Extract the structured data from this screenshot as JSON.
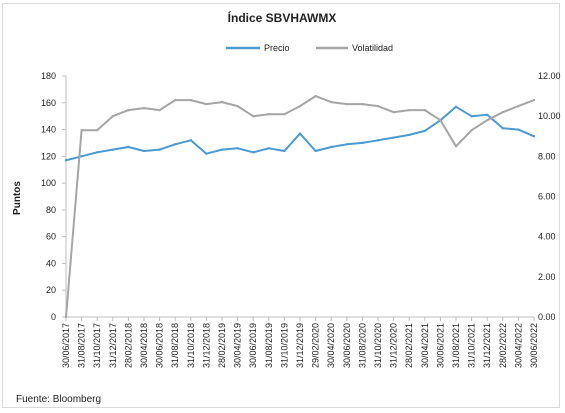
{
  "source_note": "Fuente: Bloomberg",
  "chart_data": {
    "type": "line",
    "title": "Índice SBVHAWMX",
    "ylabel": "Puntos",
    "y2label": "",
    "ylim": [
      0,
      180
    ],
    "y2lim": [
      0,
      12
    ],
    "yticks": [
      "0",
      "20",
      "40",
      "60",
      "80",
      "100",
      "120",
      "140",
      "160",
      "180"
    ],
    "y2ticks": [
      "0.00",
      "2.00",
      "4.00",
      "6.00",
      "8.00",
      "10.00",
      "12.00"
    ],
    "legend_position": "top-center",
    "grid": false,
    "xticks": [
      "30/06/2017",
      "31/08/2017",
      "31/10/2017",
      "31/12/2017",
      "28/02/2018",
      "30/04/2018",
      "30/06/2018",
      "31/08/2018",
      "31/10/2018",
      "31/12/2018",
      "28/02/2019",
      "30/04/2019",
      "30/06/2019",
      "31/08/2019",
      "31/10/2019",
      "31/12/2019",
      "29/02/2020",
      "30/04/2020",
      "30/06/2020",
      "31/08/2020",
      "31/10/2020",
      "31/12/2020",
      "28/02/2021",
      "30/04/2021",
      "30/06/2021",
      "31/08/2021",
      "31/10/2021",
      "31/12/2021",
      "28/02/2022",
      "30/04/2022",
      "30/06/2022"
    ],
    "series": [
      {
        "name": "Precio",
        "axis": "left",
        "color": "#4a9ad4",
        "values": [
          117,
          120,
          123,
          125,
          127,
          124,
          125,
          129,
          132,
          122,
          125,
          126,
          123,
          126,
          124,
          137,
          124,
          127,
          129,
          130,
          132,
          134,
          136,
          139,
          147,
          157,
          150,
          151,
          141,
          140,
          135
        ]
      },
      {
        "name": "Volatilidad",
        "axis": "right",
        "color": "#a6a6a6",
        "values": [
          0.0,
          9.3,
          9.3,
          10.0,
          10.3,
          10.4,
          10.3,
          10.8,
          10.8,
          10.6,
          10.7,
          10.5,
          10.0,
          10.1,
          10.1,
          10.5,
          11.0,
          10.7,
          10.6,
          10.6,
          10.5,
          10.2,
          10.3,
          10.3,
          9.8,
          8.5,
          9.3,
          9.8,
          10.2,
          10.5,
          10.8
        ]
      }
    ]
  }
}
